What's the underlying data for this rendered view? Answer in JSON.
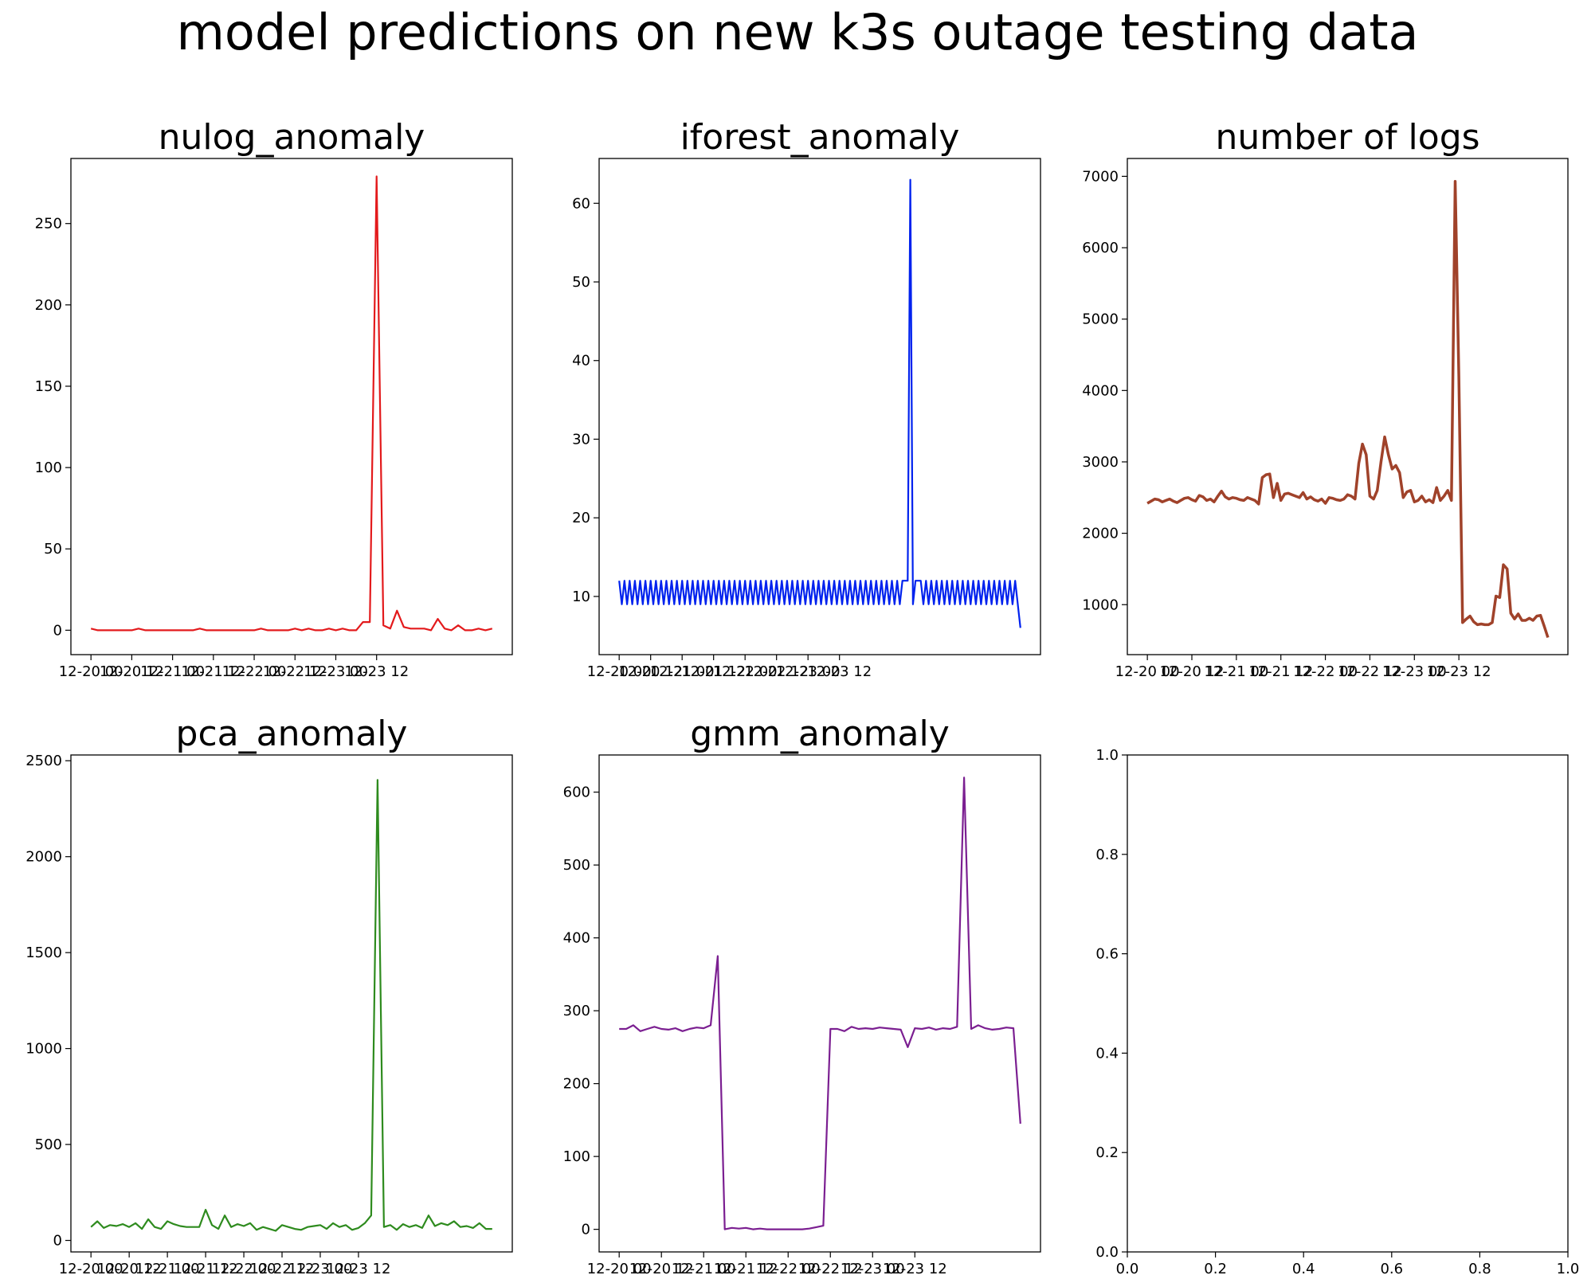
{
  "suptitle": "model predictions on new k3s outage testing data",
  "xtick_labels": [
    "12-20 00",
    "12-20 12",
    "12-21 00",
    "12-21 12",
    "12-22 00",
    "12-22 12",
    "12-23 00",
    "12-23 12"
  ],
  "chart_data": [
    {
      "type": "line",
      "title": "nulog_anomaly",
      "color": "#e31a1c",
      "ylim": [
        -15,
        290
      ],
      "yticks": [
        0,
        50,
        100,
        150,
        200,
        250
      ],
      "x_start": "12-20 00:00",
      "x_step_hours": 2,
      "values": [
        1,
        0,
        0,
        0,
        0,
        0,
        0,
        1,
        0,
        0,
        0,
        0,
        0,
        0,
        0,
        0,
        1,
        0,
        0,
        0,
        0,
        0,
        0,
        0,
        0,
        1,
        0,
        0,
        0,
        0,
        1,
        0,
        1,
        0,
        0,
        1,
        0,
        1,
        0,
        0,
        5,
        5,
        279,
        3,
        1,
        12,
        2,
        1,
        1,
        1,
        0,
        7,
        1,
        0,
        3,
        0,
        0,
        1,
        0,
        1
      ]
    },
    {
      "type": "line",
      "title": "iforest_anomaly",
      "color": "#0022ee",
      "ylim": [
        2.6,
        65.7
      ],
      "yticks": [
        10,
        20,
        30,
        40,
        50,
        60
      ],
      "x_start": "12-20 00:00",
      "x_step_hours": 1,
      "values": [
        12,
        9,
        12,
        9,
        12,
        9,
        12,
        9,
        12,
        9,
        12,
        9,
        12,
        9,
        12,
        9,
        12,
        9,
        12,
        9,
        12,
        9,
        12,
        9,
        12,
        9,
        12,
        9,
        12,
        9,
        12,
        9,
        12,
        9,
        12,
        9,
        12,
        9,
        12,
        9,
        12,
        9,
        12,
        9,
        12,
        9,
        12,
        9,
        12,
        9,
        12,
        9,
        12,
        9,
        12,
        9,
        12,
        9,
        12,
        9,
        12,
        9,
        12,
        9,
        12,
        9,
        12,
        9,
        12,
        9,
        12,
        9,
        12,
        9,
        12,
        9,
        12,
        9,
        12,
        9,
        12,
        9,
        12,
        9,
        12,
        9,
        12,
        9,
        12,
        9,
        12,
        9,
        12,
        9,
        12,
        9,
        12,
        9,
        12,
        9,
        12,
        9,
        12,
        9,
        12,
        9,
        12,
        9,
        12,
        12,
        12,
        63,
        9,
        12,
        12,
        12,
        9,
        12,
        9,
        12,
        9,
        12,
        9,
        12,
        9,
        12,
        9,
        12,
        9,
        12,
        9,
        12,
        9,
        12,
        9,
        12,
        9,
        12,
        9,
        12,
        9,
        12,
        9,
        12,
        9,
        12,
        9,
        12,
        9,
        12,
        9,
        12,
        9,
        6
      ]
    },
    {
      "type": "line",
      "title": "number of logs",
      "color": "#a0422a",
      "ylim": [
        300,
        7250
      ],
      "yticks": [
        1000,
        2000,
        3000,
        4000,
        5000,
        6000,
        7000
      ],
      "x_start": "12-20 00:00",
      "x_step_hours": 1,
      "values": [
        2420,
        2450,
        2480,
        2470,
        2440,
        2460,
        2480,
        2450,
        2430,
        2460,
        2490,
        2500,
        2470,
        2450,
        2530,
        2510,
        2460,
        2480,
        2440,
        2520,
        2590,
        2510,
        2480,
        2500,
        2490,
        2470,
        2460,
        2500,
        2480,
        2460,
        2410,
        2780,
        2820,
        2830,
        2500,
        2700,
        2460,
        2550,
        2560,
        2540,
        2520,
        2500,
        2570,
        2480,
        2510,
        2470,
        2450,
        2480,
        2420,
        2500,
        2490,
        2470,
        2460,
        2480,
        2540,
        2520,
        2480,
        2980,
        3250,
        3100,
        2520,
        2480,
        2600,
        3000,
        3350,
        3100,
        2900,
        2950,
        2850,
        2500,
        2580,
        2600,
        2440,
        2460,
        2520,
        2440,
        2470,
        2430,
        2640,
        2460,
        2520,
        2600,
        2460,
        6930,
        4200,
        750,
        800,
        840,
        760,
        720,
        730,
        720,
        720,
        750,
        1120,
        1100,
        1560,
        1500,
        880,
        800,
        870,
        780,
        780,
        810,
        780,
        840,
        850,
        700,
        540
      ]
    },
    {
      "type": "line",
      "title": "pca_anomaly",
      "color": "#2e8b1e",
      "ylim": [
        -60,
        2530
      ],
      "yticks": [
        0,
        500,
        1000,
        1500,
        2000,
        2500
      ],
      "x_start": "12-20 00:00",
      "x_step_hours": 2,
      "values": [
        70,
        100,
        65,
        80,
        75,
        85,
        70,
        90,
        60,
        110,
        70,
        60,
        100,
        85,
        75,
        70,
        70,
        70,
        160,
        80,
        60,
        130,
        70,
        85,
        75,
        90,
        55,
        70,
        60,
        50,
        80,
        70,
        60,
        55,
        70,
        75,
        80,
        60,
        90,
        70,
        80,
        55,
        65,
        90,
        130,
        2400,
        70,
        80,
        55,
        85,
        70,
        80,
        65,
        130,
        75,
        90,
        80,
        100,
        70,
        75,
        65,
        90,
        60,
        60
      ]
    },
    {
      "type": "line",
      "title": "gmm_anomaly",
      "color": "#7b1f91",
      "ylim": [
        -31,
        651
      ],
      "yticks": [
        0,
        100,
        200,
        300,
        400,
        500,
        600
      ],
      "x_start": "12-20 00:00",
      "x_step_hours": 2,
      "values": [
        275,
        275,
        280,
        272,
        275,
        278,
        275,
        274,
        276,
        272,
        275,
        277,
        276,
        280,
        375,
        0,
        2,
        1,
        2,
        0,
        1,
        0,
        0,
        0,
        0,
        0,
        0,
        1,
        3,
        5,
        275,
        275,
        272,
        278,
        275,
        276,
        275,
        277,
        276,
        275,
        274,
        250,
        276,
        275,
        277,
        274,
        276,
        275,
        278,
        620,
        275,
        280,
        276,
        274,
        275,
        277,
        276,
        145
      ]
    },
    {
      "type": "line",
      "title": "",
      "series": [],
      "xlim": [
        0.0,
        1.0
      ],
      "ylim": [
        0.0,
        1.0
      ],
      "xticks": [
        "0.0",
        "0.2",
        "0.4",
        "0.6",
        "0.8",
        "1.0"
      ],
      "yticks": [
        "0.0",
        "0.2",
        "0.4",
        "0.6",
        "0.8",
        "1.0"
      ]
    }
  ]
}
